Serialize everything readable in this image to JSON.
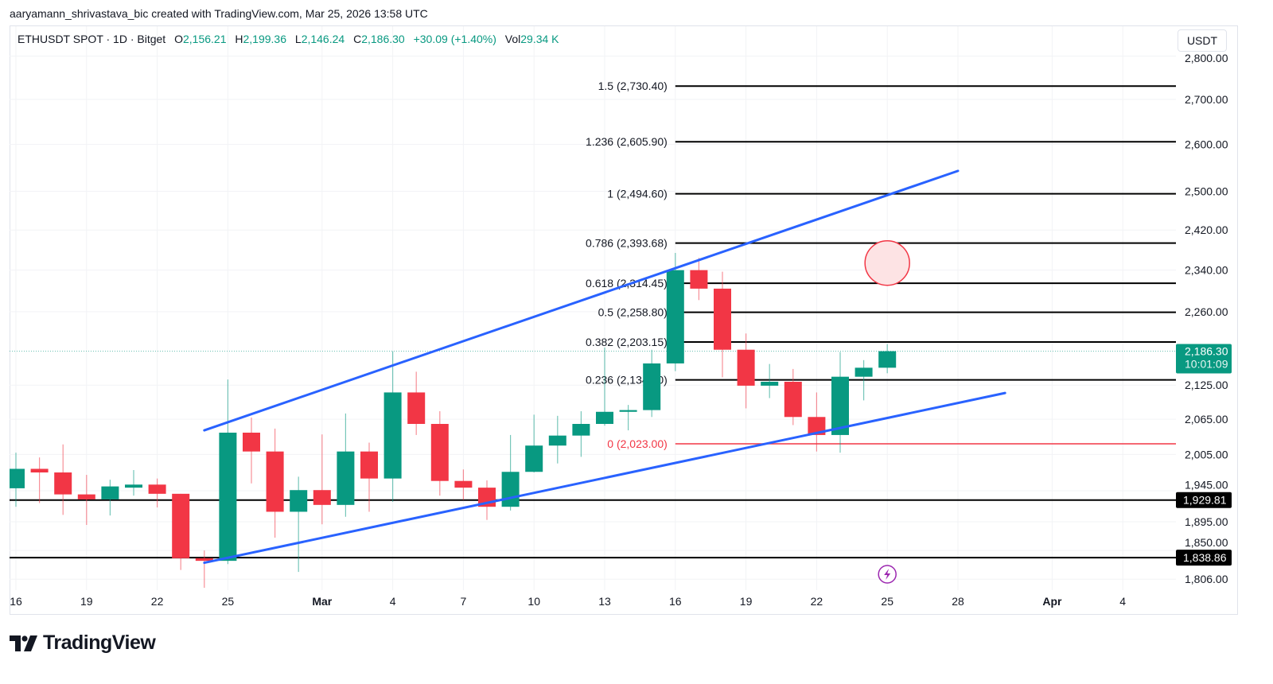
{
  "header": {
    "attribution": "aaryamann_shrivastava_bic created with TradingView.com, Mar 25, 2026 13:58 UTC"
  },
  "legend": {
    "symbol": "ETHUSDT SPOT · 1D · Bitget",
    "o_label": "O",
    "o": "2,156.21",
    "h_label": "H",
    "h": "2,199.36",
    "l_label": "L",
    "l": "2,146.24",
    "c_label": "C",
    "c": "2,186.30",
    "change": "+30.09 (+1.40%)",
    "vol_label": "Vol",
    "vol": "29.34 K"
  },
  "currency_button": "USDT",
  "logo": "TradingView",
  "colors": {
    "up": "#089981",
    "down": "#f23645",
    "trend_line": "#2962ff",
    "fib_zero": "#f23645",
    "level_line": "#000000",
    "event": "#9c27b0"
  },
  "chart_data": {
    "type": "candlestick",
    "title": "",
    "y_scale": "log",
    "grid": true,
    "candles": [
      {
        "date": "2026-02-16",
        "o": 1949,
        "h": 2008,
        "l": 1919,
        "c": 1981
      },
      {
        "date": "2026-02-17",
        "o": 1981,
        "h": 2000,
        "l": 1925,
        "c": 1975
      },
      {
        "date": "2026-02-18",
        "o": 1975,
        "h": 2022,
        "l": 1906,
        "c": 1939
      },
      {
        "date": "2026-02-19",
        "o": 1939,
        "h": 1971,
        "l": 1890,
        "c": 1931
      },
      {
        "date": "2026-02-20",
        "o": 1931,
        "h": 1963,
        "l": 1905,
        "c": 1952
      },
      {
        "date": "2026-02-21",
        "o": 1950,
        "h": 1979,
        "l": 1937,
        "c": 1955
      },
      {
        "date": "2026-02-22",
        "o": 1955,
        "h": 1965,
        "l": 1918,
        "c": 1940
      },
      {
        "date": "2026-02-23",
        "o": 1940,
        "h": 1940,
        "l": 1820,
        "c": 1838
      },
      {
        "date": "2026-02-24",
        "o": 1838,
        "h": 1850,
        "l": 1793,
        "c": 1834
      },
      {
        "date": "2026-02-25",
        "o": 1834,
        "h": 2135,
        "l": 1829,
        "c": 2042
      },
      {
        "date": "2026-02-26",
        "o": 2042,
        "h": 2068,
        "l": 1957,
        "c": 2010
      },
      {
        "date": "2026-02-27",
        "o": 2010,
        "h": 2049,
        "l": 1870,
        "c": 1911
      },
      {
        "date": "2026-02-28",
        "o": 1911,
        "h": 1968,
        "l": 1817,
        "c": 1946
      },
      {
        "date": "2026-03-01",
        "o": 1946,
        "h": 2039,
        "l": 1891,
        "c": 1922
      },
      {
        "date": "2026-03-02",
        "o": 1922,
        "h": 2075,
        "l": 1903,
        "c": 2010
      },
      {
        "date": "2026-03-03",
        "o": 2010,
        "h": 2025,
        "l": 1911,
        "c": 1965
      },
      {
        "date": "2026-03-04",
        "o": 1965,
        "h": 2186,
        "l": 1927,
        "c": 2112
      },
      {
        "date": "2026-03-05",
        "o": 2112,
        "h": 2149,
        "l": 2038,
        "c": 2057
      },
      {
        "date": "2026-03-06",
        "o": 2057,
        "h": 2079,
        "l": 1937,
        "c": 1961
      },
      {
        "date": "2026-03-07",
        "o": 1961,
        "h": 1980,
        "l": 1930,
        "c": 1950
      },
      {
        "date": "2026-03-08",
        "o": 1950,
        "h": 1962,
        "l": 1898,
        "c": 1919
      },
      {
        "date": "2026-03-09",
        "o": 1919,
        "h": 2038,
        "l": 1913,
        "c": 1976
      },
      {
        "date": "2026-03-10",
        "o": 1976,
        "h": 2073,
        "l": 1975,
        "c": 2020
      },
      {
        "date": "2026-03-11",
        "o": 2020,
        "h": 2071,
        "l": 1990,
        "c": 2037
      },
      {
        "date": "2026-03-12",
        "o": 2037,
        "h": 2079,
        "l": 2001,
        "c": 2057
      },
      {
        "date": "2026-03-13",
        "o": 2057,
        "h": 2193,
        "l": 2054,
        "c": 2078
      },
      {
        "date": "2026-03-14",
        "o": 2078,
        "h": 2090,
        "l": 2046,
        "c": 2081
      },
      {
        "date": "2026-03-15",
        "o": 2081,
        "h": 2189,
        "l": 2069,
        "c": 2164
      },
      {
        "date": "2026-03-16",
        "o": 2164,
        "h": 2374,
        "l": 2150,
        "c": 2340
      },
      {
        "date": "2026-03-17",
        "o": 2340,
        "h": 2364,
        "l": 2282,
        "c": 2304
      },
      {
        "date": "2026-03-18",
        "o": 2304,
        "h": 2337,
        "l": 2139,
        "c": 2189
      },
      {
        "date": "2026-03-19",
        "o": 2189,
        "h": 2219,
        "l": 2084,
        "c": 2124
      },
      {
        "date": "2026-03-20",
        "o": 2124,
        "h": 2163,
        "l": 2102,
        "c": 2131
      },
      {
        "date": "2026-03-21",
        "o": 2131,
        "h": 2154,
        "l": 2055,
        "c": 2069
      },
      {
        "date": "2026-03-22",
        "o": 2069,
        "h": 2112,
        "l": 2010,
        "c": 2038
      },
      {
        "date": "2026-03-23",
        "o": 2038,
        "h": 2185,
        "l": 2008,
        "c": 2140
      },
      {
        "date": "2026-03-24",
        "o": 2140,
        "h": 2170,
        "l": 2098,
        "c": 2156.21
      },
      {
        "date": "2026-03-25",
        "o": 2156.21,
        "h": 2199.36,
        "l": 2146.24,
        "c": 2186.3
      }
    ],
    "y_ticks": [
      {
        "price": 2800,
        "label": "2,800.00"
      },
      {
        "price": 2700,
        "label": "2,700.00"
      },
      {
        "price": 2600,
        "label": "2,600.00"
      },
      {
        "price": 2500,
        "label": "2,500.00"
      },
      {
        "price": 2420,
        "label": "2,420.00"
      },
      {
        "price": 2340,
        "label": "2,340.00"
      },
      {
        "price": 2260,
        "label": "2,260.00"
      },
      {
        "price": 2125,
        "label": "2,125.00"
      },
      {
        "price": 2065,
        "label": "2,065.00"
      },
      {
        "price": 2005,
        "label": "2,005.00"
      },
      {
        "price": 1945,
        "label": "1,945.00"
      },
      {
        "price": 1895,
        "label": "1,895.00"
      },
      {
        "price": 1850,
        "label": "1,850.00"
      },
      {
        "price": 1806,
        "label": "1,806.00"
      }
    ],
    "x_ticks": [
      {
        "date": "2026-02-16",
        "label": "16"
      },
      {
        "date": "2026-02-19",
        "label": "19"
      },
      {
        "date": "2026-02-22",
        "label": "22"
      },
      {
        "date": "2026-02-25",
        "label": "25"
      },
      {
        "date": "2026-03-01",
        "label": "Mar",
        "bold": true
      },
      {
        "date": "2026-03-04",
        "label": "4"
      },
      {
        "date": "2026-03-07",
        "label": "7"
      },
      {
        "date": "2026-03-10",
        "label": "10"
      },
      {
        "date": "2026-03-13",
        "label": "13"
      },
      {
        "date": "2026-03-16",
        "label": "16"
      },
      {
        "date": "2026-03-19",
        "label": "19"
      },
      {
        "date": "2026-03-22",
        "label": "22"
      },
      {
        "date": "2026-03-25",
        "label": "25"
      },
      {
        "date": "2026-03-28",
        "label": "28"
      },
      {
        "date": "2026-04-01",
        "label": "Apr",
        "bold": true
      },
      {
        "date": "2026-04-04",
        "label": "4"
      }
    ],
    "last_price": {
      "price": 2186.3,
      "label": "2,186.30",
      "countdown": "10:01:09"
    },
    "horizontal_lines": [
      {
        "price": 1929.81,
        "label": "1,929.81"
      },
      {
        "price": 1838.86,
        "label": "1,838.86"
      }
    ],
    "fibonacci": {
      "start_date": "2026-03-16",
      "levels": [
        {
          "ratio": 1.5,
          "price": 2730.4,
          "label": "1.5 (2,730.40)"
        },
        {
          "ratio": 1.236,
          "price": 2605.9,
          "label": "1.236 (2,605.90)"
        },
        {
          "ratio": 1,
          "price": 2494.6,
          "label": "1 (2,494.60)"
        },
        {
          "ratio": 0.786,
          "price": 2393.68,
          "label": "0.786 (2,393.68)"
        },
        {
          "ratio": 0.618,
          "price": 2314.45,
          "label": "0.618 (2,314.45)"
        },
        {
          "ratio": 0.5,
          "price": 2258.8,
          "label": "0.5 (2,258.80)"
        },
        {
          "ratio": 0.382,
          "price": 2203.15,
          "label": "0.382 (2,203.15)"
        },
        {
          "ratio": 0.236,
          "price": 2134.3,
          "label": "0.236 (2,134.30)"
        },
        {
          "ratio": 0,
          "price": 2023.0,
          "label": "0 (2,023.00)",
          "zero": true
        }
      ]
    },
    "trend_lines": [
      {
        "name": "channel-upper",
        "from": {
          "date": "2026-02-24",
          "price": 2046
        },
        "to": {
          "date": "2026-03-28",
          "price": 2543
        }
      },
      {
        "name": "channel-lower",
        "from": {
          "date": "2026-02-24",
          "price": 1831
        },
        "to": {
          "date": "2026-03-30",
          "price": 2111
        }
      }
    ],
    "highlight_circle": {
      "date": "2026-03-25",
      "price": 2354
    },
    "event_marker": {
      "date": "2026-03-25",
      "icon": "lightning-icon"
    }
  }
}
